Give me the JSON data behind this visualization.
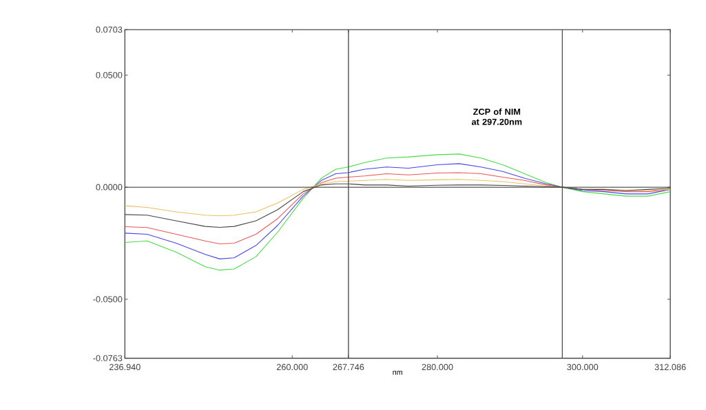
{
  "chart_data": {
    "type": "line",
    "xlabel": "nm",
    "annotations": [
      "ZCP of NIM at 297.20nm"
    ],
    "x": [
      236.94,
      240,
      244,
      248,
      250,
      252,
      255,
      258,
      261.5,
      264,
      266,
      267.7,
      270,
      273,
      276,
      280,
      283,
      286,
      289,
      292,
      295,
      297.2,
      300,
      303,
      306,
      309,
      312.086
    ],
    "series": [
      {
        "color": "#44dd44",
        "values": [
          -0.0247,
          -0.024,
          -0.029,
          -0.0355,
          -0.037,
          -0.0365,
          -0.031,
          -0.02,
          -0.005,
          0.004,
          0.008,
          0.009,
          0.011,
          0.013,
          0.0135,
          0.0145,
          0.0148,
          0.013,
          0.01,
          0.006,
          0.002,
          0,
          -0.002,
          -0.003,
          -0.004,
          -0.004,
          -0.002
        ]
      },
      {
        "color": "#4444ee",
        "values": [
          -0.0205,
          -0.021,
          -0.025,
          -0.03,
          -0.032,
          -0.0315,
          -0.026,
          -0.017,
          -0.004,
          0.003,
          0.006,
          0.0065,
          0.008,
          0.009,
          0.0085,
          0.01,
          0.0105,
          0.009,
          0.007,
          0.004,
          0.0015,
          0,
          -0.0015,
          -0.002,
          -0.003,
          -0.003,
          -0.001
        ]
      },
      {
        "color": "#ee5555",
        "values": [
          -0.0176,
          -0.018,
          -0.021,
          -0.024,
          -0.0253,
          -0.025,
          -0.021,
          -0.014,
          -0.003,
          0.002,
          0.004,
          0.0045,
          0.005,
          0.006,
          0.0055,
          0.0063,
          0.0065,
          0.006,
          0.0045,
          0.003,
          0.001,
          0,
          -0.001,
          -0.0015,
          -0.002,
          -0.002,
          -0.001
        ]
      },
      {
        "color": "#e8c060",
        "values": [
          -0.0083,
          -0.009,
          -0.011,
          -0.0125,
          -0.0128,
          -0.0125,
          -0.011,
          -0.007,
          -0.001,
          0.0015,
          0.0025,
          0.0027,
          0.003,
          0.0035,
          0.003,
          0.0033,
          0.0035,
          0.003,
          0.0025,
          0.0015,
          0.0005,
          0,
          -0.001,
          -0.001,
          -0.0015,
          -0.0015,
          -0.001
        ]
      },
      {
        "color": "#444444",
        "values": [
          -0.0122,
          -0.0125,
          -0.015,
          -0.0175,
          -0.0179,
          -0.0175,
          -0.015,
          -0.01,
          -0.002,
          0.001,
          0.0015,
          0.0015,
          0.001,
          0.001,
          0.0005,
          0.0009,
          0.001,
          0.001,
          0.0008,
          0.0005,
          0.0002,
          0,
          -0.001,
          -0.001,
          -0.0015,
          -0.001,
          -0.0005
        ]
      }
    ],
    "xlim": [
      236.94,
      312.086
    ],
    "xticks": [
      {
        "value": 236.94,
        "label": "236.940"
      },
      {
        "value": 260,
        "label": "260.000"
      },
      {
        "value": 267.746,
        "label": "267.746"
      },
      {
        "value": 280,
        "label": "280.000"
      },
      {
        "value": 300,
        "label": "300.000"
      },
      {
        "value": 312.086,
        "label": "312.086"
      }
    ],
    "ylim": [
      -0.0763,
      0.0703
    ],
    "yticks": [
      {
        "value": -0.0763,
        "label": "-0.0763"
      },
      {
        "value": -0.05,
        "label": "-0.0500"
      },
      {
        "value": 0,
        "label": "0.0000"
      },
      {
        "value": 0.05,
        "label": "0.0500"
      },
      {
        "value": 0.0703,
        "label": "0.0703"
      }
    ],
    "ref_lines": [
      {
        "axis": "x",
        "value": 267.746,
        "color": "#444444"
      },
      {
        "axis": "x",
        "value": 297.2,
        "color": "#444444"
      },
      {
        "axis": "y",
        "value": 0,
        "color": "#444444"
      }
    ],
    "grid": false,
    "marker": "none",
    "line_style": "solid"
  }
}
